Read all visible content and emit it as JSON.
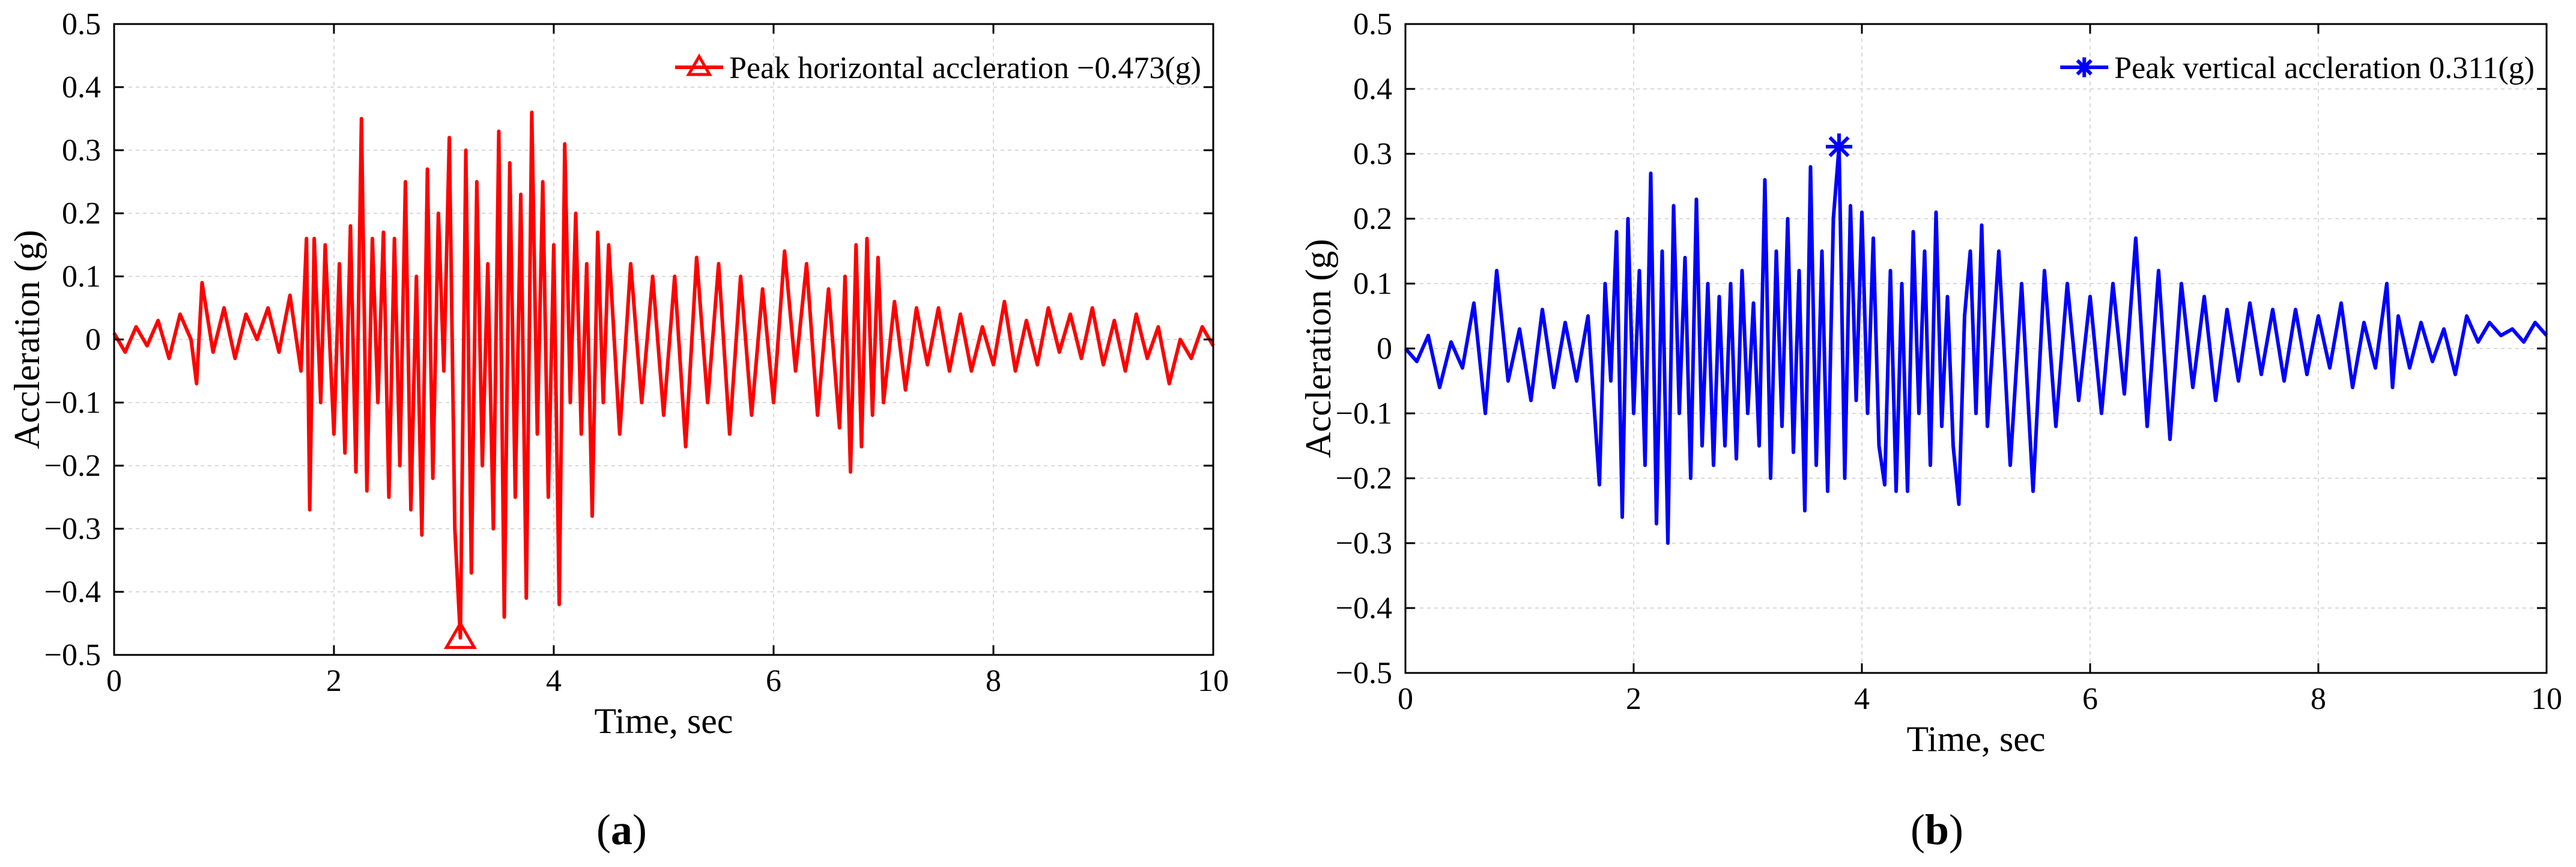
{
  "figure": {
    "panel_a_label": "(a)",
    "panel_a_letter": "a",
    "panel_b_label": "(b)",
    "panel_b_letter": "b"
  },
  "chart_data": [
    {
      "id": "a",
      "type": "line",
      "title": "",
      "xlabel": "Time, sec",
      "ylabel": "Accleration (g)",
      "xlim": [
        0,
        10
      ],
      "ylim": [
        -0.5,
        0.5
      ],
      "xticks": [
        "0",
        "2",
        "4",
        "6",
        "8",
        "10"
      ],
      "yticks": [
        "-0.5",
        "-0.4",
        "-0.3",
        "-0.2",
        "-0.1",
        "0",
        "0.1",
        "0.2",
        "0.3",
        "0.4",
        "0.5"
      ],
      "grid": true,
      "color": "#ff0000",
      "legend": {
        "label": "Peak horizontal accleration −0.473(g)",
        "marker": "triangle",
        "placement": "top-right"
      },
      "peak": {
        "x": 3.15,
        "y": -0.473,
        "marker": "triangle"
      },
      "series": [
        {
          "name": "Horizontal acceleration",
          "x": [
            0,
            0.1,
            0.2,
            0.3,
            0.4,
            0.5,
            0.6,
            0.7,
            0.75,
            0.8,
            0.9,
            1.0,
            1.1,
            1.2,
            1.3,
            1.4,
            1.5,
            1.6,
            1.7,
            1.75,
            1.78,
            1.82,
            1.88,
            1.92,
            2.0,
            2.05,
            2.1,
            2.15,
            2.2,
            2.25,
            2.3,
            2.35,
            2.4,
            2.45,
            2.5,
            2.55,
            2.6,
            2.65,
            2.7,
            2.75,
            2.8,
            2.85,
            2.9,
            2.95,
            3.0,
            3.05,
            3.1,
            3.15,
            3.2,
            3.25,
            3.3,
            3.35,
            3.4,
            3.45,
            3.5,
            3.55,
            3.6,
            3.65,
            3.7,
            3.75,
            3.8,
            3.85,
            3.9,
            3.95,
            4.0,
            4.05,
            4.1,
            4.15,
            4.2,
            4.25,
            4.3,
            4.35,
            4.4,
            4.45,
            4.5,
            4.6,
            4.7,
            4.8,
            4.9,
            5.0,
            5.1,
            5.2,
            5.3,
            5.4,
            5.5,
            5.6,
            5.7,
            5.8,
            5.9,
            6.0,
            6.1,
            6.2,
            6.3,
            6.4,
            6.5,
            6.6,
            6.65,
            6.7,
            6.75,
            6.8,
            6.85,
            6.9,
            6.95,
            7.0,
            7.1,
            7.2,
            7.3,
            7.4,
            7.5,
            7.6,
            7.7,
            7.8,
            7.9,
            8.0,
            8.1,
            8.2,
            8.3,
            8.4,
            8.5,
            8.6,
            8.7,
            8.8,
            8.9,
            9.0,
            9.1,
            9.2,
            9.3,
            9.4,
            9.5,
            9.6,
            9.7,
            9.8,
            9.9,
            10.0
          ],
          "values": [
            0.01,
            -0.02,
            0.02,
            -0.01,
            0.03,
            -0.03,
            0.04,
            0.0,
            -0.07,
            0.09,
            -0.02,
            0.05,
            -0.03,
            0.04,
            0.0,
            0.05,
            -0.02,
            0.07,
            -0.05,
            0.16,
            -0.27,
            0.16,
            -0.1,
            0.15,
            -0.15,
            0.12,
            -0.18,
            0.18,
            -0.21,
            0.35,
            -0.24,
            0.16,
            -0.1,
            0.17,
            -0.25,
            0.16,
            -0.2,
            0.25,
            -0.27,
            0.1,
            -0.31,
            0.27,
            -0.22,
            0.2,
            -0.05,
            0.32,
            -0.3,
            -0.473,
            0.3,
            -0.37,
            0.25,
            -0.2,
            0.12,
            -0.3,
            0.33,
            -0.44,
            0.28,
            -0.25,
            0.23,
            -0.41,
            0.36,
            -0.15,
            0.25,
            -0.25,
            0.15,
            -0.42,
            0.31,
            -0.1,
            0.2,
            -0.15,
            0.12,
            -0.28,
            0.17,
            -0.1,
            0.15,
            -0.15,
            0.12,
            -0.1,
            0.1,
            -0.12,
            0.1,
            -0.17,
            0.13,
            -0.1,
            0.12,
            -0.15,
            0.1,
            -0.12,
            0.08,
            -0.1,
            0.14,
            -0.05,
            0.12,
            -0.12,
            0.08,
            -0.14,
            0.1,
            -0.21,
            0.15,
            -0.17,
            0.16,
            -0.12,
            0.13,
            -0.1,
            0.06,
            -0.08,
            0.05,
            -0.04,
            0.05,
            -0.05,
            0.04,
            -0.05,
            0.02,
            -0.04,
            0.06,
            -0.05,
            0.03,
            -0.04,
            0.05,
            -0.02,
            0.04,
            -0.03,
            0.05,
            -0.04,
            0.03,
            -0.05,
            0.04,
            -0.03,
            0.02,
            -0.07,
            0.0,
            -0.03,
            0.02,
            -0.01
          ]
        }
      ]
    },
    {
      "id": "b",
      "type": "line",
      "title": "",
      "xlabel": "Time, sec",
      "ylabel": "Accleration (g)",
      "xlim": [
        0,
        10
      ],
      "ylim": [
        -0.5,
        0.5
      ],
      "xticks": [
        "0",
        "2",
        "4",
        "6",
        "8",
        "10"
      ],
      "yticks": [
        "-0.5",
        "-0.4",
        "-0.3",
        "-0.2",
        "-0.1",
        "0",
        "0.1",
        "0.2",
        "0.3",
        "0.4",
        "0.5"
      ],
      "grid": true,
      "color": "#0000ff",
      "legend": {
        "label": "Peak vertical accleration 0.311(g)",
        "marker": "asterisk",
        "placement": "top-right"
      },
      "peak": {
        "x": 3.8,
        "y": 0.311,
        "marker": "asterisk"
      },
      "series": [
        {
          "name": "Vertical acceleration",
          "x": [
            0,
            0.1,
            0.2,
            0.3,
            0.4,
            0.5,
            0.6,
            0.7,
            0.8,
            0.9,
            1.0,
            1.1,
            1.2,
            1.3,
            1.4,
            1.5,
            1.6,
            1.7,
            1.75,
            1.8,
            1.85,
            1.9,
            1.95,
            2.0,
            2.05,
            2.1,
            2.15,
            2.2,
            2.25,
            2.3,
            2.35,
            2.4,
            2.45,
            2.5,
            2.55,
            2.6,
            2.65,
            2.7,
            2.75,
            2.8,
            2.85,
            2.9,
            2.95,
            3.0,
            3.05,
            3.1,
            3.15,
            3.2,
            3.25,
            3.3,
            3.35,
            3.4,
            3.45,
            3.5,
            3.55,
            3.6,
            3.65,
            3.7,
            3.75,
            3.8,
            3.85,
            3.9,
            3.95,
            4.0,
            4.05,
            4.1,
            4.15,
            4.2,
            4.25,
            4.3,
            4.35,
            4.4,
            4.45,
            4.5,
            4.55,
            4.6,
            4.65,
            4.7,
            4.75,
            4.8,
            4.85,
            4.9,
            4.95,
            5.0,
            5.05,
            5.1,
            5.2,
            5.3,
            5.4,
            5.5,
            5.6,
            5.7,
            5.8,
            5.9,
            6.0,
            6.1,
            6.2,
            6.3,
            6.4,
            6.5,
            6.6,
            6.7,
            6.8,
            6.9,
            7.0,
            7.1,
            7.2,
            7.3,
            7.4,
            7.5,
            7.6,
            7.7,
            7.8,
            7.9,
            8.0,
            8.1,
            8.2,
            8.3,
            8.4,
            8.5,
            8.6,
            8.65,
            8.7,
            8.8,
            8.9,
            9.0,
            9.1,
            9.2,
            9.3,
            9.4,
            9.5,
            9.6,
            9.7,
            9.8,
            9.9,
            10.0
          ],
          "values": [
            0.0,
            -0.02,
            0.02,
            -0.06,
            0.01,
            -0.03,
            0.07,
            -0.1,
            0.12,
            -0.05,
            0.03,
            -0.08,
            0.06,
            -0.06,
            0.04,
            -0.05,
            0.05,
            -0.21,
            0.1,
            -0.05,
            0.18,
            -0.26,
            0.2,
            -0.1,
            0.12,
            -0.18,
            0.27,
            -0.27,
            0.15,
            -0.3,
            0.22,
            -0.1,
            0.14,
            -0.2,
            0.23,
            -0.15,
            0.1,
            -0.18,
            0.08,
            -0.15,
            0.1,
            -0.17,
            0.12,
            -0.1,
            0.07,
            -0.15,
            0.26,
            -0.2,
            0.15,
            -0.12,
            0.2,
            -0.16,
            0.12,
            -0.25,
            0.28,
            -0.18,
            0.15,
            -0.22,
            0.2,
            0.311,
            -0.2,
            0.22,
            -0.08,
            0.21,
            -0.1,
            0.17,
            -0.15,
            -0.21,
            0.12,
            -0.22,
            0.1,
            -0.22,
            0.18,
            -0.1,
            0.15,
            -0.18,
            0.21,
            -0.12,
            0.08,
            -0.15,
            -0.24,
            0.05,
            0.15,
            -0.1,
            0.19,
            -0.12,
            0.15,
            -0.18,
            0.1,
            -0.22,
            0.12,
            -0.12,
            0.1,
            -0.08,
            0.08,
            -0.1,
            0.1,
            -0.07,
            0.17,
            -0.12,
            0.12,
            -0.14,
            0.1,
            -0.06,
            0.08,
            -0.08,
            0.06,
            -0.05,
            0.07,
            -0.04,
            0.06,
            -0.05,
            0.06,
            -0.04,
            0.05,
            -0.03,
            0.07,
            -0.06,
            0.04,
            -0.03,
            0.1,
            -0.06,
            0.05,
            -0.03,
            0.04,
            -0.02,
            0.03,
            -0.04,
            0.05,
            0.01,
            0.04,
            0.02,
            0.03,
            0.01,
            0.04,
            0.02
          ]
        }
      ]
    }
  ]
}
